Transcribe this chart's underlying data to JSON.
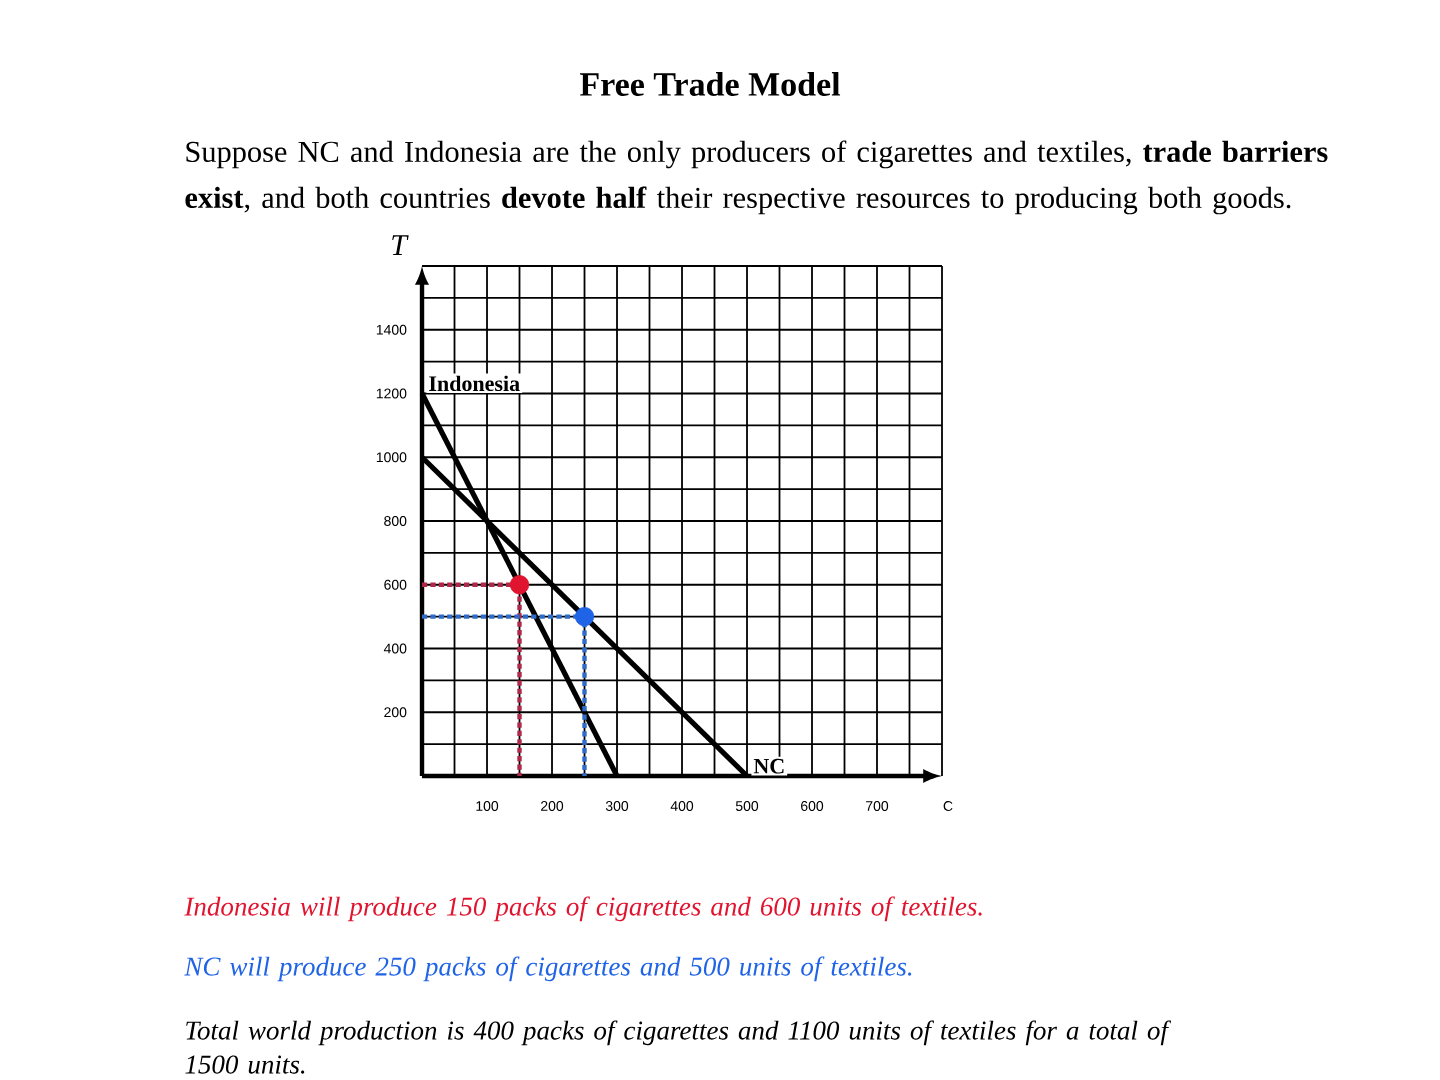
{
  "chart_data": {
    "type": "line",
    "title": "Free Trade Model",
    "subtitle": "Suppose NC and Indonesia are the only producers of cigarettes and textiles, **trade barriers exist**, and both countries **devote half** their respective resources to producing both goods.",
    "xlabel": "C",
    "ylabel": "T",
    "xlim": [
      0,
      800
    ],
    "ylim": [
      0,
      1600
    ],
    "xticks": [
      {
        "value": 50,
        "label": null
      },
      100,
      {
        "value": 150,
        "label": null
      },
      200,
      {
        "value": 250,
        "label": null
      },
      300,
      {
        "value": 350,
        "label": null
      },
      400,
      {
        "value": 450,
        "label": null
      },
      500,
      {
        "value": 550,
        "label": null
      },
      600,
      {
        "value": 650,
        "label": null
      },
      700,
      {
        "value": 750,
        "label": null
      },
      {
        "value": 800,
        "label": null
      }
    ],
    "yticks": [
      {
        "value": 100,
        "label": null
      },
      200,
      {
        "value": 300,
        "label": null
      },
      400,
      {
        "value": 500,
        "label": null
      },
      600,
      {
        "value": 700,
        "label": null
      },
      800,
      {
        "value": 900,
        "label": null
      },
      1000,
      {
        "value": 1100,
        "label": null
      },
      1200,
      {
        "value": 1300,
        "label": null
      },
      1400,
      {
        "value": 1500,
        "label": null
      },
      {
        "value": 1600,
        "label": null
      }
    ],
    "grid": true,
    "series": [
      {
        "name": "Indonesia",
        "color": "#000000",
        "x": [
          0,
          300
        ],
        "values": [
          1200,
          0
        ]
      },
      {
        "name": "NC",
        "color": "#000000",
        "x": [
          0,
          500
        ],
        "values": [
          1000,
          0
        ]
      },
      {
        "type": "line",
        "color": "#b0284a",
        "line_style": "dotted",
        "x": [
          0,
          150,
          150
        ],
        "values": [
          600,
          600,
          0
        ]
      },
      {
        "type": "line",
        "color": "#2f6cc8",
        "line_style": "dotted",
        "x": [
          0,
          250,
          250
        ],
        "values": [
          500,
          500,
          0
        ]
      },
      {
        "type": "scatter",
        "color": "#e0142f",
        "x": [
          150
        ],
        "values": [
          600
        ]
      },
      {
        "type": "scatter",
        "color": "#1f63e6",
        "x": [
          250
        ],
        "values": [
          500
        ]
      }
    ],
    "annotations": [
      "Indonesia will produce 150 packs of cigarettes and 600 units of textiles.",
      "NC will produce 250 packs of cigarettes and 500 units of textiles.",
      "Total world production is 400 packs of cigarettes and 1100 units of textiles for a total of 1500 units."
    ]
  }
}
